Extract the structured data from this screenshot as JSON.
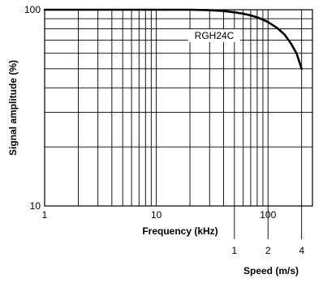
{
  "chart_data": {
    "type": "line",
    "title": "",
    "xlabel": "Frequency (kHz)",
    "ylabel": "Signal amplitude (%)",
    "x_scale": "log",
    "y_scale": "log",
    "xlim": [
      1,
      250
    ],
    "ylim": [
      10,
      100
    ],
    "x_ticks": [
      "1",
      "10",
      "100"
    ],
    "y_ticks": [
      "100",
      "10"
    ],
    "grid": true,
    "secondary_x_axis": {
      "label": "Speed (m/s)",
      "ticks": [
        {
          "label": "1",
          "frequency": 50
        },
        {
          "label": "2",
          "frequency": 100
        },
        {
          "label": "4",
          "frequency": 200
        }
      ]
    },
    "series": [
      {
        "name": "RGH24C",
        "x": [
          1,
          5,
          10,
          20,
          30,
          40,
          50,
          60,
          70,
          80,
          90,
          100,
          120,
          140,
          160,
          180,
          200
        ],
        "y": [
          100,
          100,
          100,
          100,
          99.5,
          98.5,
          97,
          95.5,
          93.5,
          91.5,
          89,
          86.5,
          81,
          75,
          67.5,
          60,
          50
        ]
      }
    ]
  }
}
